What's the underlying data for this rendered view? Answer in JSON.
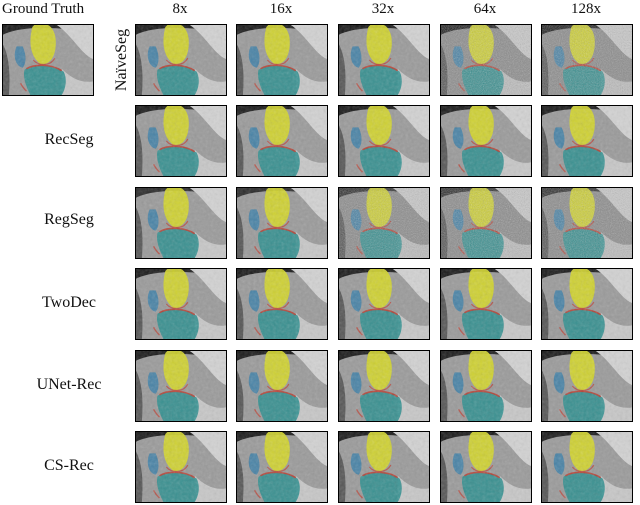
{
  "figure": {
    "gt_label": "Ground Truth",
    "columns": [
      "8x",
      "16x",
      "32x",
      "64x",
      "128x"
    ],
    "rows": [
      {
        "label": "NaïveSeg",
        "vertical": true
      },
      {
        "label": "RecSeg",
        "vertical": false
      },
      {
        "label": "RegSeg",
        "vertical": false
      },
      {
        "label": "TwoDec",
        "vertical": false
      },
      {
        "label": "UNet-Rec",
        "vertical": false
      },
      {
        "label": "CS-Rec",
        "vertical": false
      }
    ]
  },
  "colors": {
    "femur_yellow": "#d4d62a",
    "tibia_teal": "#2f8f8f",
    "patella_blue": "#3b7fa8",
    "cartilage_red": "#c0392b",
    "panel_border": "#000000"
  }
}
